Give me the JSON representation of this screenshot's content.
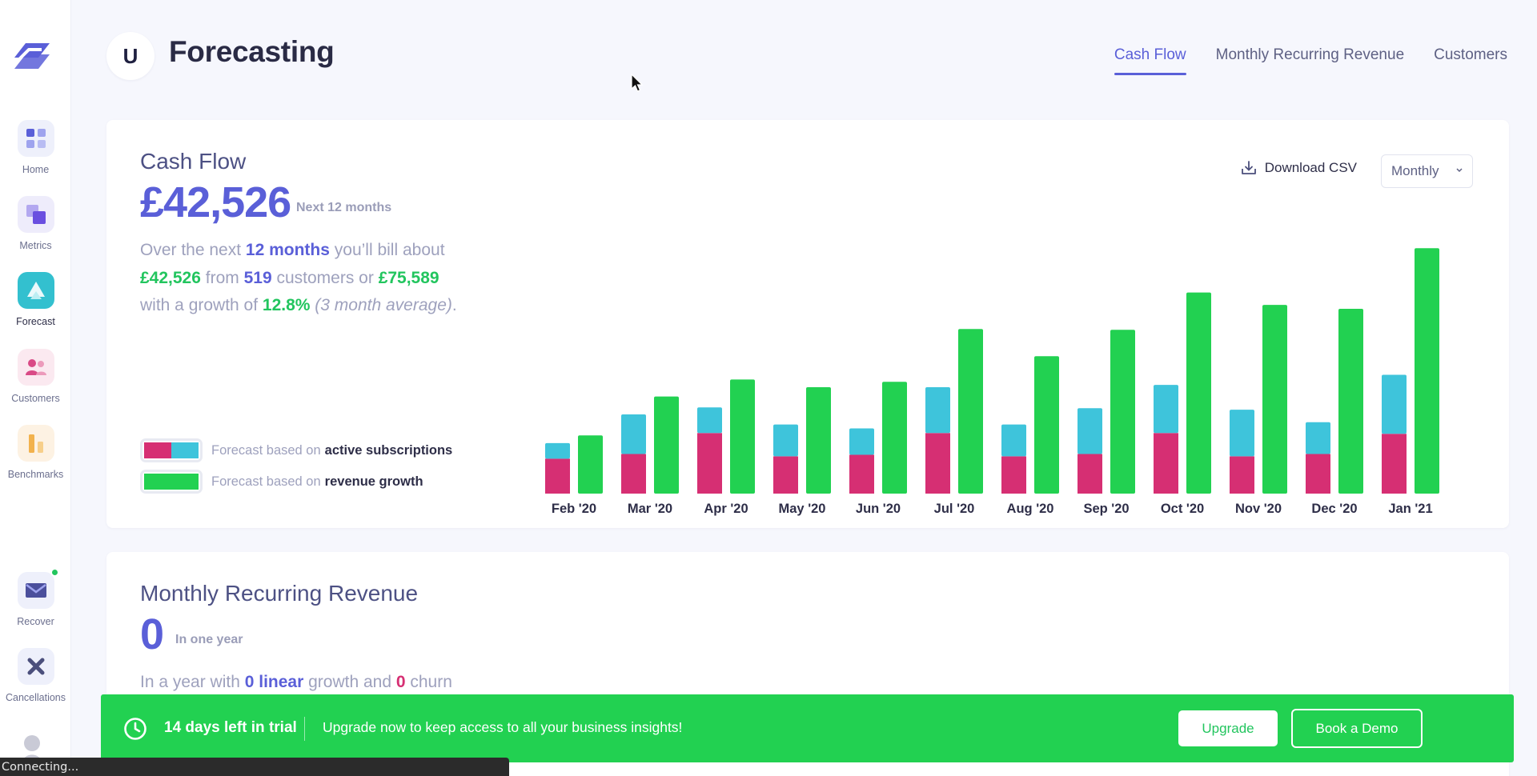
{
  "app": {
    "badge_letter": "U",
    "title": "Forecasting"
  },
  "sidebar": {
    "items": [
      {
        "label": "Home",
        "icon": "grid-icon"
      },
      {
        "label": "Metrics",
        "icon": "squares-icon"
      },
      {
        "label": "Forecast",
        "icon": "forecast-icon",
        "active": true
      },
      {
        "label": "Customers",
        "icon": "people-icon"
      },
      {
        "label": "Benchmarks",
        "icon": "bars-icon"
      },
      {
        "label": "Recover",
        "icon": "mail-icon",
        "notification": true
      },
      {
        "label": "Cancellations",
        "icon": "cross-icon"
      }
    ]
  },
  "tabs": [
    {
      "label": "Cash Flow",
      "active": true
    },
    {
      "label": "Monthly Recurring Revenue",
      "active": false
    },
    {
      "label": "Customers",
      "active": false
    }
  ],
  "cash_flow": {
    "title": "Cash Flow",
    "value": "£42,526",
    "value_sub": "Next 12 months",
    "summary": {
      "p1": "Over the next ",
      "months": "12 months",
      "p2": " you’ll bill about ",
      "amount": "£42,526",
      "p3": " from ",
      "customers": "519",
      "p4": " customers or ",
      "growth_amount": "£75,589",
      "p5": "with a growth of ",
      "growth_rate": "12.8%",
      "avg_note": "(3 month average)",
      "p6": "."
    },
    "legend": [
      {
        "prefix": "Forecast based on",
        "label": "active subscriptions"
      },
      {
        "prefix": "Forecast based on",
        "label": "revenue growth"
      }
    ],
    "download_label": "Download CSV",
    "period": "Monthly"
  },
  "colors": {
    "accent": "#5a5fd8",
    "pink": "#d62f73",
    "cyan": "#3ec4db",
    "green": "#22d151"
  },
  "chart_data": {
    "type": "bar",
    "categories": [
      "Feb '20",
      "Mar '20",
      "Apr '20",
      "May '20",
      "Jun '20",
      "Jul '20",
      "Aug '20",
      "Sep '20",
      "Oct '20",
      "Nov '20",
      "Dec '20",
      "Jan '21"
    ],
    "series": [
      {
        "values": [
          45,
          51,
          78,
          48,
          50,
          78,
          48,
          51,
          78,
          48,
          51,
          77
        ],
        "stack": "subscriptions"
      },
      {
        "values": [
          20,
          51,
          33,
          41,
          34,
          59,
          41,
          59,
          62,
          60,
          41,
          76
        ],
        "stack": "subscriptions"
      },
      {
        "values": [
          75,
          125,
          147,
          137,
          144,
          212,
          177,
          211,
          259,
          243,
          238,
          316
        ],
        "stack": "growth"
      }
    ],
    "ylim": [
      0,
      340
    ],
    "grid": false,
    "legend": "left"
  },
  "mrr": {
    "title": "Monthly Recurring Revenue",
    "value": "0",
    "value_sub": "In one year",
    "summary": {
      "p1": "In a year with ",
      "linear_value": "0 linear",
      "p2": " growth and ",
      "churn_value": "0",
      "p3": " churn"
    }
  },
  "trial": {
    "days_left": "14 days left in trial",
    "message": "Upgrade now to keep access to all your business insights!",
    "upgrade_label": "Upgrade",
    "demo_label": "Book a Demo"
  },
  "status_bar": {
    "text": "Connecting..."
  }
}
